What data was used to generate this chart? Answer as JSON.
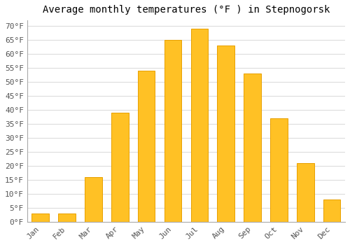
{
  "title": "Average monthly temperatures (°F ) in Stepnogorsk",
  "months": [
    "Jan",
    "Feb",
    "Mar",
    "Apr",
    "May",
    "Jun",
    "Jul",
    "Aug",
    "Sep",
    "Oct",
    "Nov",
    "Dec"
  ],
  "values": [
    3,
    3,
    16,
    39,
    54,
    65,
    69,
    63,
    53,
    37,
    21,
    8
  ],
  "bar_color": "#FFC125",
  "bar_edge_color": "#E8A000",
  "background_color": "#FFFFFF",
  "plot_bg_color": "#FFFFFF",
  "ylim": [
    0,
    72
  ],
  "yticks": [
    0,
    5,
    10,
    15,
    20,
    25,
    30,
    35,
    40,
    45,
    50,
    55,
    60,
    65,
    70
  ],
  "ylabel_suffix": "°F",
  "grid_color": "#DDDDDD",
  "title_fontsize": 10,
  "tick_fontsize": 8,
  "bar_width": 0.65
}
